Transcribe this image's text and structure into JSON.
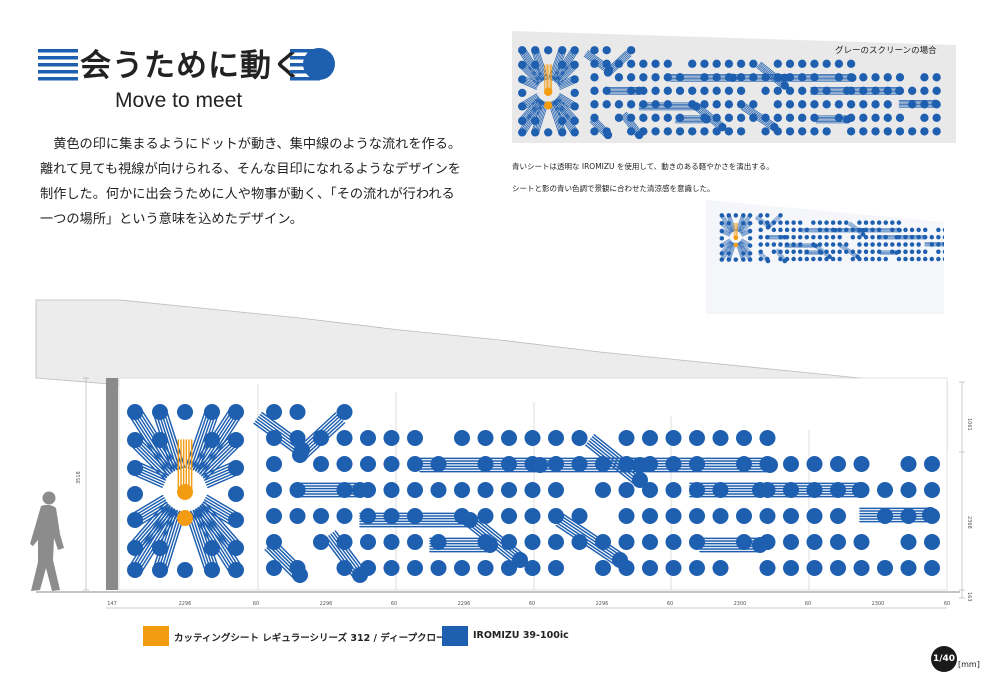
{
  "header": {
    "title": "会うために動く",
    "subtitle": "Move to meet"
  },
  "description": [
    "黄色の印に集まるようにドットが動き、集中線のような流れを作る。",
    "離れて見ても視線が向けられる、そんな目印になれるようなデザインを",
    "制作した。何かに出会うために人や物事が動く、「その流れが行われる",
    "一つの場所」という意味を込めたデザイン。"
  ],
  "preview": {
    "grey_label": "グレーのスクリーンの場合",
    "note_1": "青いシートは透明な IROMIZU を使用して、動きのある軽やかさを演出する。",
    "note_2": "シートと影の青い色調で景観に合わせた清涼感を意識した。"
  },
  "dimensions": {
    "height_left": "3518",
    "height_right": "2368",
    "top_right": "1061",
    "bottom_right": "163",
    "widths": [
      "147",
      "2296",
      "60",
      "2296",
      "60",
      "2296",
      "60",
      "2296",
      "60",
      "2300",
      "60",
      "2300",
      "60"
    ]
  },
  "legend": [
    {
      "label": "カッティングシート レギュラーシリーズ 312 / ディープクローム",
      "color": "#f39c12"
    },
    {
      "label": "IROMIZU 39-100ic",
      "color": "#1e5fb0"
    }
  ],
  "page": {
    "number": "1/40",
    "unit": "[mm]"
  },
  "colors": {
    "blue": "#1e5fb0",
    "orange": "#f39c12",
    "wall": "#ececec"
  },
  "icons": [
    "stripe-dot-icon"
  ]
}
